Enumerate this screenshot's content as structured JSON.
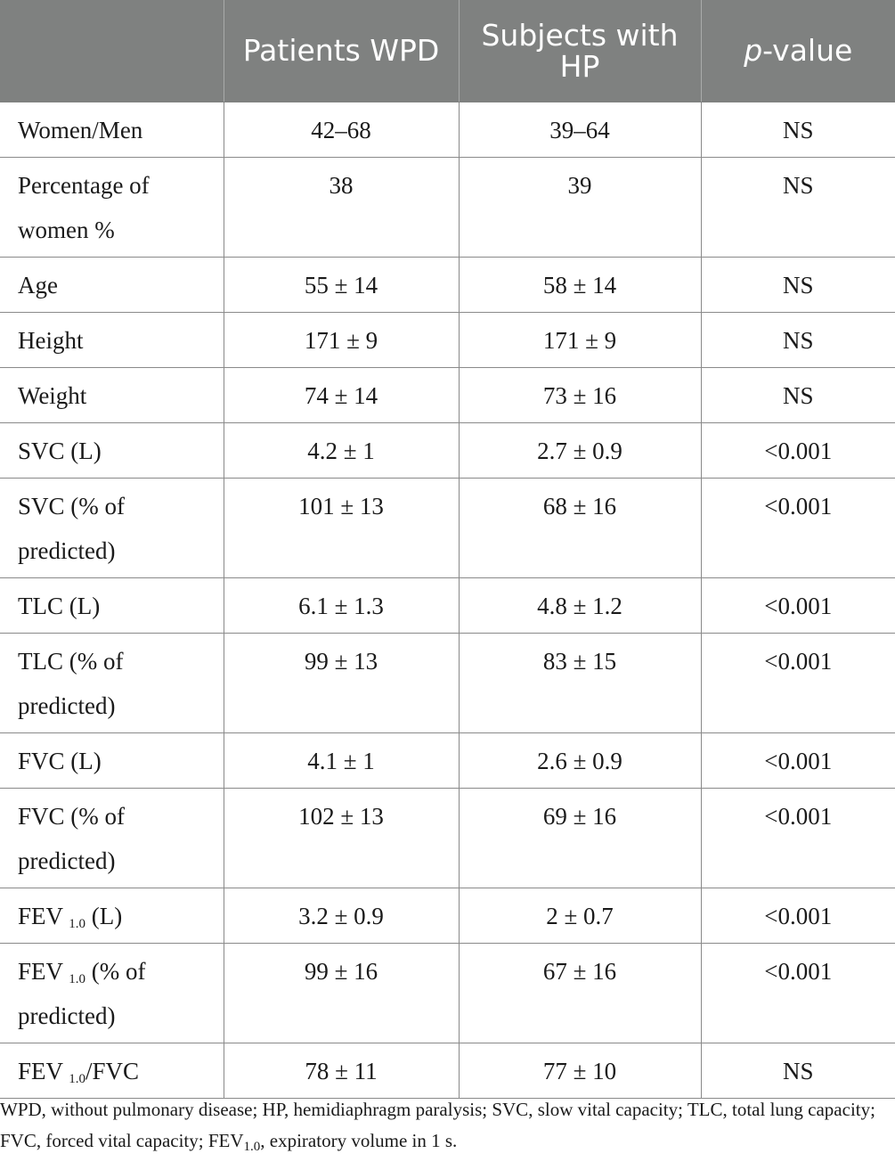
{
  "table": {
    "headers": [
      {
        "text": ""
      },
      {
        "text": "Patients WPD"
      },
      {
        "text": "Subjects with HP"
      },
      {
        "prefix_italic": "p",
        "text": "-value"
      }
    ],
    "rows": [
      {
        "label": "Women/Men",
        "wpd": "42–68",
        "hp": "39–64",
        "p": "NS"
      },
      {
        "label": "Percentage of women %",
        "wpd": "38",
        "hp": "39",
        "p": "NS"
      },
      {
        "label": "Age",
        "wpd": "55 ± 14",
        "hp": "58 ± 14",
        "p": "NS"
      },
      {
        "label": "Height",
        "wpd": "171 ± 9",
        "hp": "171 ± 9",
        "p": "NS"
      },
      {
        "label": "Weight",
        "wpd": "74 ± 14",
        "hp": "73 ± 16",
        "p": "NS"
      },
      {
        "label": "SVC (L)",
        "wpd": "4.2 ± 1",
        "hp": "2.7 ± 0.9",
        "p": "<0.001"
      },
      {
        "label": "SVC (% of predicted)",
        "wpd": "101 ± 13",
        "hp": "68 ± 16",
        "p": "<0.001"
      },
      {
        "label": "TLC (L)",
        "wpd": "6.1 ± 1.3",
        "hp": "4.8 ± 1.2",
        "p": "<0.001"
      },
      {
        "label": "TLC (% of predicted)",
        "wpd": "99 ± 13",
        "hp": "83 ± 15",
        "p": "<0.001"
      },
      {
        "label": "FVC (L)",
        "wpd": "4.1 ± 1",
        "hp": "2.6 ± 0.9",
        "p": "<0.001"
      },
      {
        "label": "FVC (% of predicted)",
        "wpd": "102 ± 13",
        "hp": "69 ± 16",
        "p": "<0.001"
      },
      {
        "label_pre": "FEV ",
        "label_sub": "1.0",
        "label_post": " (L)",
        "wpd": "3.2 ± 0.9",
        "hp": "2 ± 0.7",
        "p": "<0.001"
      },
      {
        "label_pre": "FEV ",
        "label_sub": "1.0",
        "label_post": " (% of predicted)",
        "wpd": "99 ± 16",
        "hp": "67 ± 16",
        "p": "<0.001"
      },
      {
        "label_pre": "FEV ",
        "label_sub": "1.0",
        "label_post": "/FVC",
        "wpd": "78 ± 11",
        "hp": "77 ± 10",
        "p": "NS"
      }
    ]
  },
  "footnote": {
    "pre": "WPD, without pulmonary disease; HP, hemidiaphragm paralysis; SVC, slow vital capacity; TLC, total lung capacity; FVC, forced vital capacity; FEV",
    "sub": "1.0",
    "post": ", expiratory volume in 1 s."
  }
}
